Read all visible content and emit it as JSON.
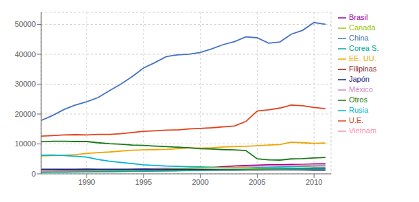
{
  "chart_data": {
    "type": "line",
    "x": [
      1986,
      1987,
      1988,
      1989,
      1990,
      1991,
      1992,
      1993,
      1994,
      1995,
      1996,
      1997,
      1998,
      1999,
      2000,
      2001,
      2002,
      2003,
      2004,
      2005,
      2006,
      2007,
      2008,
      2009,
      2010,
      2011
    ],
    "series": [
      {
        "name": "China",
        "color": "#4472C4",
        "values": [
          17900,
          19500,
          21500,
          23000,
          24100,
          25500,
          27800,
          30000,
          32500,
          35400,
          37200,
          39200,
          39800,
          40000,
          40600,
          41800,
          43200,
          44200,
          45800,
          45500,
          43700,
          44100,
          46700,
          48000,
          50600,
          50000
        ]
      },
      {
        "name": "U.E.",
        "color": "#E2421A",
        "values": [
          12600,
          12800,
          13000,
          13100,
          13000,
          13200,
          13200,
          13400,
          13800,
          14200,
          14400,
          14600,
          14700,
          15000,
          15200,
          15400,
          15700,
          16000,
          17500,
          21000,
          21400,
          22000,
          23000,
          22800,
          22200,
          21800
        ]
      },
      {
        "name": "EE. UU.",
        "color": "#F0A500",
        "values": [
          6000,
          6100,
          6200,
          6400,
          6800,
          7100,
          7300,
          7600,
          7900,
          8000,
          8100,
          8200,
          8400,
          8700,
          8600,
          8700,
          9000,
          9100,
          9200,
          9400,
          9600,
          9800,
          10600,
          10400,
          10200,
          10300
        ]
      },
      {
        "name": "Otros",
        "color": "#1A7A1A",
        "values": [
          10700,
          10900,
          10900,
          10800,
          10800,
          10400,
          10100,
          9900,
          9600,
          9500,
          9300,
          9100,
          8900,
          8700,
          8400,
          8300,
          8100,
          8000,
          7800,
          5000,
          4700,
          4600,
          5000,
          5100,
          5300,
          5500
        ]
      },
      {
        "name": "Brasil",
        "color": "#9B00A0",
        "values": [
          1000,
          1050,
          1100,
          1150,
          1100,
          1150,
          1200,
          1350,
          1450,
          1600,
          1700,
          1800,
          1750,
          1800,
          2000,
          2100,
          2350,
          2600,
          2800,
          2900,
          3000,
          3000,
          3100,
          3130,
          3300,
          3400
        ]
      },
      {
        "name": "Rusia",
        "color": "#00B4D8",
        "values": [
          6200,
          6300,
          6100,
          5900,
          5600,
          4800,
          4200,
          3800,
          3400,
          3000,
          2800,
          2600,
          2500,
          2400,
          2300,
          2200,
          2100,
          2000,
          2000,
          2100,
          2200,
          2300,
          2400,
          2500,
          2600,
          2700
        ]
      },
      {
        "name": "Vietnam",
        "color": "#FF8FAD",
        "values": [
          800,
          850,
          900,
          950,
          1050,
          1100,
          1150,
          1200,
          1300,
          1400,
          1500,
          1600,
          1700,
          1800,
          1850,
          1950,
          2100,
          2200,
          2400,
          2550,
          2650,
          2700,
          2780,
          2900,
          3000,
          3100
        ]
      },
      {
        "name": "Canadá",
        "color": "#99CC00",
        "values": [
          900,
          950,
          1000,
          1050,
          1100,
          1150,
          1200,
          1250,
          1300,
          1400,
          1500,
          1650,
          1750,
          1900,
          1950,
          1980,
          1950,
          2000,
          1900,
          1800,
          1750,
          1750,
          1800,
          1900,
          1950,
          1800
        ]
      },
      {
        "name": "Filipinas",
        "color": "#8B1A1A",
        "values": [
          700,
          720,
          750,
          780,
          800,
          820,
          850,
          880,
          900,
          950,
          1000,
          1050,
          1100,
          1150,
          1200,
          1250,
          1300,
          1350,
          1400,
          1450,
          1500,
          1600,
          1680,
          1750,
          1900,
          1950
        ]
      },
      {
        "name": "Japón",
        "color": "#1A237E",
        "values": [
          1500,
          1510,
          1530,
          1540,
          1550,
          1540,
          1530,
          1520,
          1500,
          1490,
          1480,
          1470,
          1460,
          1440,
          1420,
          1400,
          1380,
          1360,
          1340,
          1320,
          1300,
          1290,
          1280,
          1270,
          1260,
          1250
        ]
      },
      {
        "name": "México",
        "color": "#CC88CC",
        "values": [
          750,
          780,
          800,
          820,
          840,
          860,
          880,
          900,
          920,
          950,
          980,
          1000,
          1050,
          1100,
          1050,
          1100,
          1100,
          1150,
          1200,
          1250,
          1300,
          1350,
          1400,
          1450,
          1500,
          1600
        ]
      },
      {
        "name": "Corea S.",
        "color": "#00A896",
        "values": [
          500,
          530,
          560,
          600,
          650,
          700,
          750,
          800,
          850,
          900,
          950,
          1000,
          1050,
          1100,
          1200,
          1250,
          1300,
          1300,
          1350,
          1400,
          1450,
          1500,
          1550,
          1570,
          1600,
          1620
        ]
      }
    ],
    "xlim": [
      1986,
      2011.5
    ],
    "xticks": [
      1990,
      1995,
      2000,
      2005,
      2010
    ],
    "ylim": [
      0,
      54000
    ],
    "yticks": [
      0,
      10000,
      20000,
      30000,
      40000,
      50000
    ],
    "grid": true,
    "legend": "right"
  }
}
